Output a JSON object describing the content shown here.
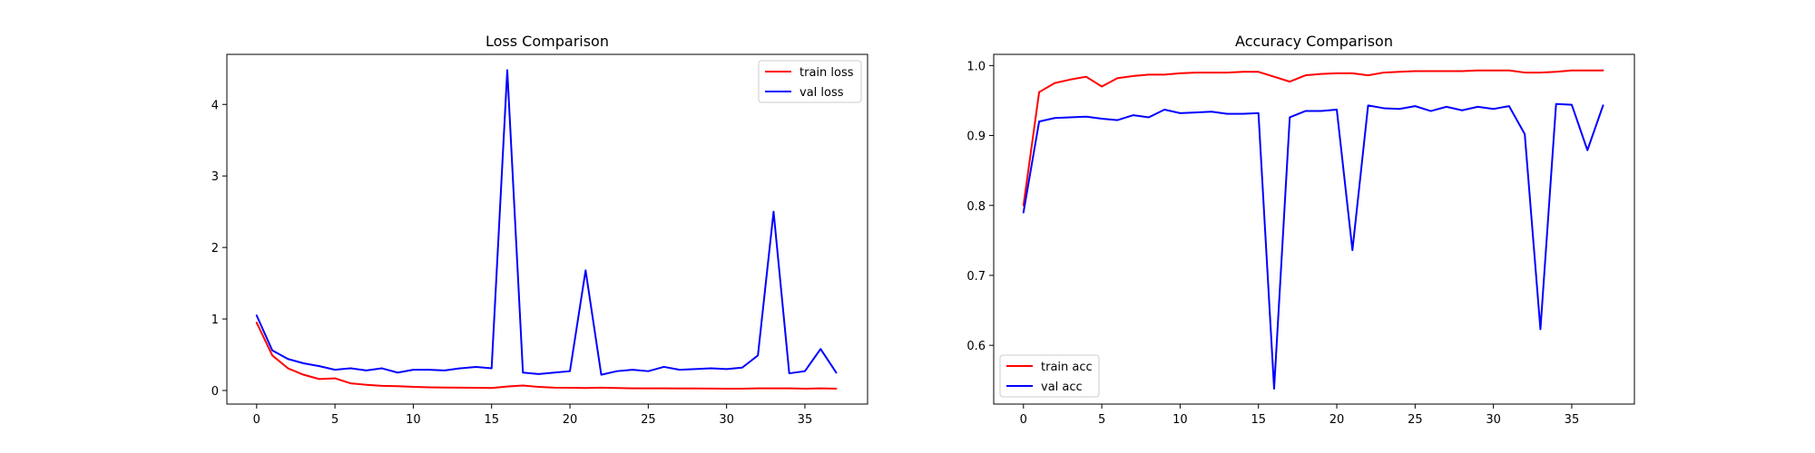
{
  "chart_data": [
    {
      "type": "line",
      "title": "Loss Comparison",
      "xlabel": "",
      "ylabel": "",
      "xlim": [
        -1.9,
        39.0
      ],
      "ylim": [
        -0.19,
        4.7
      ],
      "xticks": [
        0,
        5,
        10,
        15,
        20,
        25,
        30,
        35
      ],
      "yticks": [
        0,
        1,
        2,
        3,
        4
      ],
      "grid": false,
      "legend_position": "top-right",
      "x": [
        0,
        1,
        2,
        3,
        4,
        5,
        6,
        7,
        8,
        9,
        10,
        11,
        12,
        13,
        14,
        15,
        16,
        17,
        18,
        19,
        20,
        21,
        22,
        23,
        24,
        25,
        26,
        27,
        28,
        29,
        30,
        31,
        32,
        33,
        34,
        35,
        36,
        37
      ],
      "series": [
        {
          "name": "train loss",
          "color": "#ff0000",
          "values": [
            0.95,
            0.49,
            0.31,
            0.22,
            0.16,
            0.17,
            0.1,
            0.08,
            0.065,
            0.06,
            0.05,
            0.045,
            0.042,
            0.04,
            0.038,
            0.035,
            0.055,
            0.07,
            0.05,
            0.04,
            0.038,
            0.035,
            0.04,
            0.035,
            0.03,
            0.03,
            0.03,
            0.028,
            0.028,
            0.027,
            0.025,
            0.025,
            0.03,
            0.03,
            0.03,
            0.025,
            0.03,
            0.025
          ]
        },
        {
          "name": "val loss",
          "color": "#0000ff",
          "values": [
            1.05,
            0.56,
            0.44,
            0.38,
            0.34,
            0.29,
            0.31,
            0.28,
            0.31,
            0.25,
            0.29,
            0.29,
            0.28,
            0.31,
            0.33,
            0.31,
            4.48,
            0.25,
            0.23,
            0.25,
            0.27,
            1.68,
            0.22,
            0.27,
            0.29,
            0.27,
            0.33,
            0.29,
            0.3,
            0.31,
            0.3,
            0.32,
            0.49,
            2.5,
            0.24,
            0.27,
            0.58,
            0.25
          ]
        }
      ]
    },
    {
      "type": "line",
      "title": "Accuracy Comparison",
      "xlabel": "",
      "ylabel": "",
      "xlim": [
        -1.9,
        39.0
      ],
      "ylim": [
        0.516,
        1.016
      ],
      "xticks": [
        0,
        5,
        10,
        15,
        20,
        25,
        30,
        35
      ],
      "yticks": [
        0.6,
        0.7,
        0.8,
        0.9,
        1.0
      ],
      "ytick_labels": [
        "0.6",
        "0.7",
        "0.8",
        "0.9",
        "1.0"
      ],
      "grid": false,
      "legend_position": "bottom-left",
      "x": [
        0,
        1,
        2,
        3,
        4,
        5,
        6,
        7,
        8,
        9,
        10,
        11,
        12,
        13,
        14,
        15,
        16,
        17,
        18,
        19,
        20,
        21,
        22,
        23,
        24,
        25,
        26,
        27,
        28,
        29,
        30,
        31,
        32,
        33,
        34,
        35,
        36,
        37
      ],
      "series": [
        {
          "name": "train acc",
          "color": "#ff0000",
          "values": [
            0.8,
            0.962,
            0.975,
            0.98,
            0.984,
            0.97,
            0.982,
            0.985,
            0.987,
            0.987,
            0.989,
            0.99,
            0.99,
            0.99,
            0.991,
            0.991,
            0.984,
            0.977,
            0.986,
            0.988,
            0.989,
            0.989,
            0.986,
            0.99,
            0.991,
            0.992,
            0.992,
            0.992,
            0.992,
            0.993,
            0.993,
            0.993,
            0.99,
            0.99,
            0.991,
            0.993,
            0.993,
            0.993
          ]
        },
        {
          "name": "val acc",
          "color": "#0000ff",
          "values": [
            0.79,
            0.92,
            0.925,
            0.926,
            0.927,
            0.924,
            0.922,
            0.929,
            0.926,
            0.937,
            0.932,
            0.933,
            0.934,
            0.931,
            0.931,
            0.932,
            0.538,
            0.926,
            0.935,
            0.935,
            0.937,
            0.736,
            0.943,
            0.939,
            0.938,
            0.942,
            0.935,
            0.941,
            0.936,
            0.941,
            0.938,
            0.942,
            0.902,
            0.623,
            0.945,
            0.944,
            0.879,
            0.943
          ]
        }
      ]
    }
  ]
}
